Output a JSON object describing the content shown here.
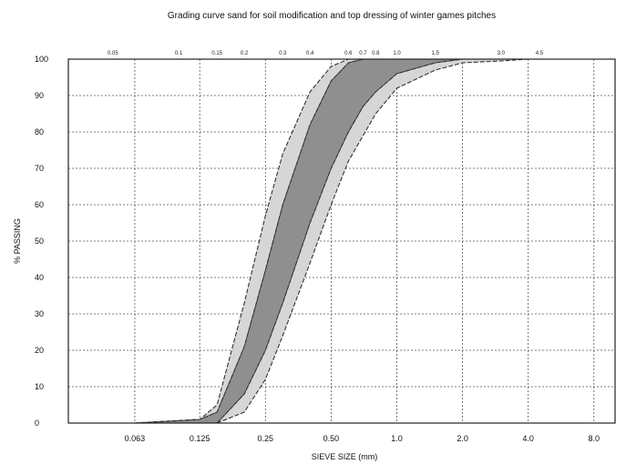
{
  "chart_data": {
    "type": "area",
    "title": "Grading curve sand for soil modification and top dressing of winter games pitches",
    "xlabel": "SIEVE SIZE (mm)",
    "ylabel": "% PASSING",
    "ylim": [
      0,
      100
    ],
    "y_ticks": [
      "0",
      "10",
      "20",
      "30",
      "40",
      "50",
      "60",
      "70",
      "80",
      "90",
      "100"
    ],
    "x_ticks": [
      "0.063",
      "0.125",
      "0.25",
      "0.50",
      "1.0",
      "2.0",
      "4.0",
      "8.0"
    ],
    "x_tick_values": [
      0.063,
      0.125,
      0.25,
      0.5,
      1.0,
      2.0,
      4.0,
      8.0
    ],
    "top_ticks": [
      "0.05",
      "0.1",
      "0.15",
      "0.2",
      "0.3",
      "0.4",
      "0.6",
      "0.7",
      "0.8",
      "1.0",
      "1.5",
      "3.0",
      "4.5"
    ],
    "top_tick_values": [
      0.05,
      0.1,
      0.15,
      0.2,
      0.3,
      0.4,
      0.6,
      0.7,
      0.8,
      1.0,
      1.5,
      3.0,
      4.5
    ],
    "x_scale": "log",
    "grid": true,
    "series": [
      {
        "role": "outer-lower",
        "x": [
          0.0625,
          0.125,
          0.15,
          0.2,
          0.25,
          0.3,
          0.4,
          0.5,
          0.6,
          0.8,
          1.0,
          1.5,
          2.0,
          3.0,
          4.0,
          5.6
        ],
        "y": [
          0,
          0,
          0,
          3,
          12,
          24,
          44,
          60,
          72,
          85,
          92,
          97,
          99,
          99.5,
          100,
          100
        ]
      },
      {
        "role": "outer-upper",
        "x": [
          0.0625,
          0.125,
          0.15,
          0.2,
          0.25,
          0.3,
          0.4,
          0.5,
          0.6,
          0.8,
          1.0,
          1.5,
          2.0,
          3.0,
          4.0,
          5.6
        ],
        "y": [
          0,
          1,
          5,
          33,
          57,
          74,
          91,
          98,
          100,
          100,
          100,
          100,
          100,
          100,
          100,
          100
        ]
      },
      {
        "role": "inner-lower",
        "x": [
          0.0625,
          0.125,
          0.15,
          0.2,
          0.25,
          0.3,
          0.4,
          0.5,
          0.6,
          0.7,
          0.8,
          1.0,
          1.5,
          2.0
        ],
        "y": [
          0,
          0,
          0,
          8,
          20,
          33,
          55,
          70,
          80,
          87,
          91,
          96,
          99,
          100
        ]
      },
      {
        "role": "inner-upper",
        "x": [
          0.0625,
          0.125,
          0.15,
          0.2,
          0.25,
          0.3,
          0.4,
          0.5,
          0.6,
          0.7,
          0.8,
          1.0,
          1.5,
          2.0
        ],
        "y": [
          0,
          1,
          3,
          21,
          42,
          60,
          82,
          94,
          99,
          100,
          100,
          100,
          100,
          100
        ]
      }
    ]
  },
  "colors": {
    "outer_band": "#d6d6d6",
    "inner_band": "#8f8f8f",
    "lines": "#333333"
  }
}
